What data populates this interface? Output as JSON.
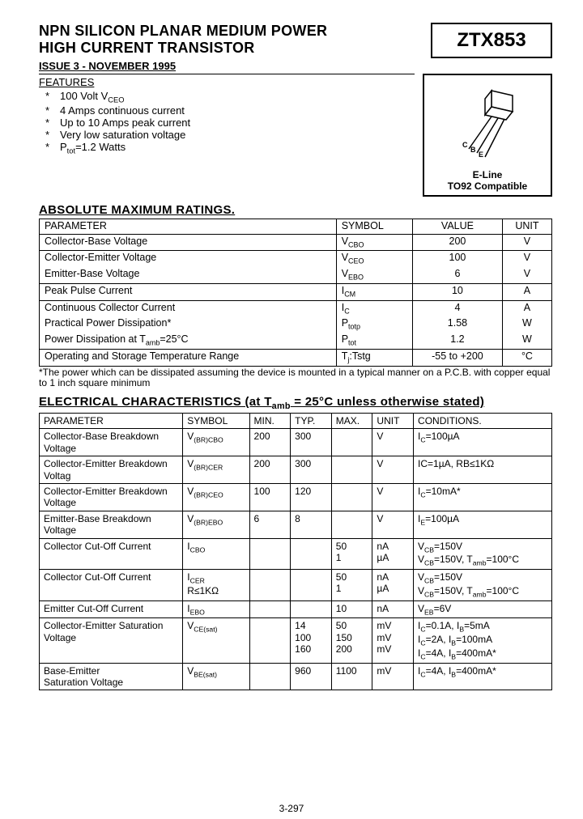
{
  "header": {
    "title1": "NPN SILICON PLANAR MEDIUM POWER",
    "title2": "HIGH CURRENT TRANSISTOR",
    "part": "ZTX853",
    "issue": "ISSUE 3 - NOVEMBER 1995"
  },
  "features": {
    "heading": "FEATURES",
    "items": [
      "100 Volt V<sub>CEO</sub>",
      "4 Amps continuous current",
      "Up to 10 Amps peak current",
      "Very low saturation voltage",
      "P<sub>tot</sub>=1.2 Watts"
    ]
  },
  "package": {
    "line1": "E-Line",
    "line2": "TO92 Compatible",
    "pins": "C B E"
  },
  "abs": {
    "heading": "ABSOLUTE MAXIMUM RATINGS.",
    "cols": [
      "PARAMETER",
      "SYMBOL",
      "VALUE",
      "UNIT"
    ],
    "rows": [
      {
        "p": "Collector-Base Voltage",
        "s": "V<sub>CBO</sub>",
        "v": "200",
        "u": "V",
        "top": true,
        "bot": true
      },
      {
        "p": "Collector-Emitter Voltage",
        "s": "V<sub>CEO</sub>",
        "v": "100",
        "u": "V",
        "top": false,
        "bot": false
      },
      {
        "p": "Emitter-Base Voltage",
        "s": "V<sub>EBO</sub>",
        "v": "6",
        "u": "V",
        "top": false,
        "bot": true
      },
      {
        "p": "Peak Pulse Current",
        "s": "I<sub>CM</sub>",
        "v": "10",
        "u": "A",
        "top": false,
        "bot": true
      },
      {
        "p": "Continuous Collector Current",
        "s": "I<sub>C</sub>",
        "v": "4",
        "u": "A",
        "top": false,
        "bot": false
      },
      {
        "p": "Practical Power Dissipation*",
        "s": "P<sub>totp</sub>",
        "v": "1.58",
        "u": "W",
        "top": false,
        "bot": false
      },
      {
        "p": "Power Dissipation at T<sub>amb</sub>=25°C",
        "s": "P<sub>tot</sub>",
        "v": "1.2",
        "u": "W",
        "top": false,
        "bot": true
      },
      {
        "p": "Operating and Storage Temperature Range",
        "s": "T<sub>j</sub>:Tstg",
        "v": "-55 to +200",
        "u": "°C",
        "top": false,
        "bot": false
      }
    ],
    "note": "*The power which can be dissipated assuming the device is mounted in a typical manner on a P.C.B. with copper equal to 1 inch square minimum"
  },
  "elec": {
    "heading": "ELECTRICAL CHARACTERISTICS (at T<sub>amb</sub> = 25°C unless otherwise stated)",
    "cols": [
      "PARAMETER",
      "SYMBOL",
      "MIN.",
      "TYP.",
      "MAX.",
      "UNIT",
      "CONDITIONS."
    ],
    "rows": [
      {
        "p": "Collector-Base Breakdown Voltage",
        "s": "V<sub>(BR)CBO</sub>",
        "min": "200",
        "typ": "300",
        "max": "",
        "u": "V",
        "c": "I<sub>C</sub>=100µA"
      },
      {
        "p": "Collector-Emitter Breakdown Voltag",
        "s": "V<sub>(BR)CER</sub>",
        "min": "200",
        "typ": "300",
        "max": "",
        "u": "V",
        "c": "IC=1µA, RB≤1KΩ"
      },
      {
        "p": "Collector-Emitter Breakdown Voltage",
        "s": "V<sub>(BR)CEO</sub>",
        "min": "100",
        "typ": "120",
        "max": "",
        "u": "V",
        "c": "I<sub>C</sub>=10mA*"
      },
      {
        "p": "Emitter-Base Breakdown Voltage",
        "s": "V<sub>(BR)EBO</sub>",
        "min": "6",
        "typ": "8",
        "max": "",
        "u": "V",
        "c": "I<sub>E</sub>=100µA"
      },
      {
        "p": "Collector Cut-Off Current",
        "s": "I<sub>CBO</sub>",
        "min": "",
        "typ": "",
        "max": "50\n1",
        "u": "nA\nµA",
        "c": "V<sub>CB</sub>=150V\nV<sub>CB</sub>=150V, T<sub>amb</sub>=100°C"
      },
      {
        "p": "Collector Cut-Off Current",
        "s": "I<sub>CER</sub>\nR≤1KΩ",
        "min": "",
        "typ": "",
        "max": "50\n1",
        "u": "nA\nµA",
        "c": "V<sub>CB</sub>=150V\nV<sub>CB</sub>=150V, T<sub>amb</sub>=100°C"
      },
      {
        "p": "Emitter Cut-Off Current",
        "s": "I<sub>EBO</sub>",
        "min": "",
        "typ": "",
        "max": "10",
        "u": "nA",
        "c": "V<sub>EB</sub>=6V"
      },
      {
        "p": "Collector-Emitter Saturation Voltage",
        "s": "V<sub>CE(sat)</sub>",
        "min": "",
        "typ": "14\n100\n160",
        "max": "50\n150\n200",
        "u": "mV\nmV\nmV",
        "c": "I<sub>C</sub>=0.1A, I<sub>B</sub>=5mA\nI<sub>C</sub>=2A, I<sub>B</sub>=100mA\nI<sub>C</sub>=4A, I<sub>B</sub>=400mA*"
      },
      {
        "p": "Base-Emitter\nSaturation Voltage",
        "s": "V<sub>BE(sat)</sub>",
        "min": "",
        "typ": "960",
        "max": "1100",
        "u": "mV",
        "c": "I<sub>C</sub>=4A, I<sub>B</sub>=400mA*"
      }
    ]
  },
  "pagenum": "3-297"
}
